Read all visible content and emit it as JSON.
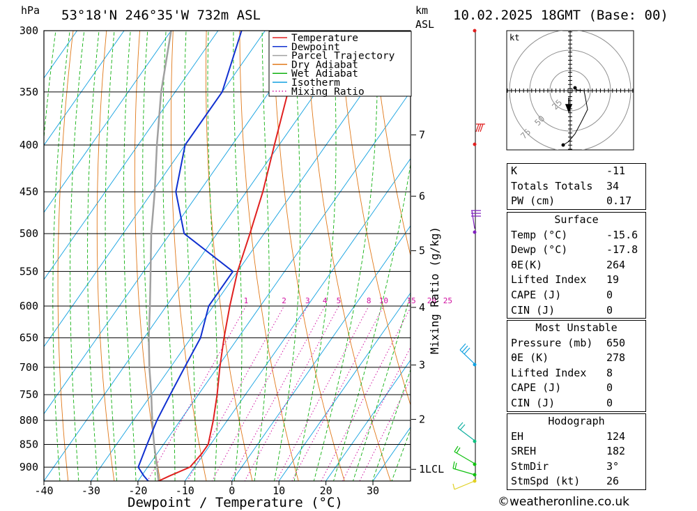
{
  "header": {
    "hpa_label": "hPa",
    "location": "53°18'N  246°35'W  732m  ASL",
    "km_label": "km",
    "asl_label": "ASL",
    "datetime": "10.02.2025  18GMT  (Base: 00)"
  },
  "chart_data": {
    "type": "line",
    "xlabel": "Dewpoint / Temperature (°C)",
    "ylabel_left": "hPa",
    "ylabel_right": "Mixing Ratio (g/kg)",
    "x_ticks": [
      -40,
      -30,
      -20,
      -10,
      0,
      10,
      20,
      30
    ],
    "pressure_levels": [
      300,
      350,
      400,
      450,
      500,
      550,
      600,
      650,
      700,
      750,
      800,
      850,
      900
    ],
    "xlim": [
      -40,
      38
    ],
    "plim": [
      300,
      932
    ],
    "km_ticks": [
      {
        "label": "7",
        "p": 390
      },
      {
        "label": "6",
        "p": 455
      },
      {
        "label": "5",
        "p": 522
      },
      {
        "label": "4",
        "p": 602
      },
      {
        "label": "3",
        "p": 696
      },
      {
        "label": "2",
        "p": 798
      },
      {
        "label": "1LCL",
        "p": 905
      }
    ],
    "mixing_ratio_labels": [
      "1",
      "2",
      "3",
      "4",
      "5",
      "8",
      "10",
      "15",
      "20",
      "25"
    ],
    "mixing_ratio_values": [
      1,
      2,
      3,
      4,
      5,
      8,
      10,
      15,
      20,
      25
    ],
    "legend": [
      {
        "name": "Temperature",
        "color": "#e02020"
      },
      {
        "name": "Dewpoint",
        "color": "#1030d0"
      },
      {
        "name": "Parcel Trajectory",
        "color": "#a0a0a0"
      },
      {
        "name": "Dry Adiabat",
        "color": "#e07818"
      },
      {
        "name": "Wet Adiabat",
        "color": "#10b010"
      },
      {
        "name": "Isotherm",
        "color": "#10a0e0"
      },
      {
        "name": "Mixing Ratio",
        "color": "#d010a0"
      }
    ],
    "series": [
      {
        "name": "Temperature",
        "color": "#e02020",
        "points": [
          [
            932,
            -15.6
          ],
          [
            920,
            -14
          ],
          [
            900,
            -11
          ],
          [
            870,
            -10.5
          ],
          [
            850,
            -10.5
          ],
          [
            800,
            -13
          ],
          [
            750,
            -16
          ],
          [
            700,
            -19.5
          ],
          [
            650,
            -23
          ],
          [
            600,
            -26.5
          ],
          [
            550,
            -30
          ],
          [
            500,
            -33
          ],
          [
            450,
            -36.5
          ],
          [
            400,
            -41
          ],
          [
            350,
            -46
          ],
          [
            300,
            -50
          ]
        ]
      },
      {
        "name": "Dewpoint",
        "color": "#1030d0",
        "points": [
          [
            932,
            -17.8
          ],
          [
            920,
            -19.5
          ],
          [
            900,
            -22
          ],
          [
            850,
            -23.5
          ],
          [
            800,
            -25
          ],
          [
            750,
            -26
          ],
          [
            700,
            -27
          ],
          [
            650,
            -28
          ],
          [
            600,
            -31
          ],
          [
            550,
            -31
          ],
          [
            500,
            -47
          ],
          [
            450,
            -55
          ],
          [
            400,
            -60
          ],
          [
            350,
            -60
          ],
          [
            300,
            -65
          ]
        ]
      },
      {
        "name": "Parcel Trajectory",
        "color": "#a0a0a0",
        "points": [
          [
            932,
            -15.6
          ],
          [
            900,
            -18
          ],
          [
            850,
            -22
          ],
          [
            800,
            -26
          ],
          [
            750,
            -30
          ],
          [
            700,
            -34.5
          ],
          [
            650,
            -39
          ],
          [
            600,
            -43.5
          ],
          [
            550,
            -48.5
          ],
          [
            500,
            -54
          ],
          [
            450,
            -59.5
          ],
          [
            400,
            -66
          ],
          [
            350,
            -73
          ],
          [
            300,
            -80
          ]
        ]
      }
    ]
  },
  "hodograph": {
    "unit": "kt",
    "ring_labels": [
      "25",
      "50",
      "75"
    ]
  },
  "indices": {
    "k_label": "K",
    "k_value": "-11",
    "tt_label": "Totals Totals",
    "tt_value": "34",
    "pw_label": "PW (cm)",
    "pw_value": "0.17"
  },
  "surface": {
    "title": "Surface",
    "temp_label": "Temp (°C)",
    "temp_value": "-15.6",
    "dewp_label": "Dewp (°C)",
    "dewp_value": "-17.8",
    "theta_label": "θE(K)",
    "theta_value": "264",
    "li_label": "Lifted Index",
    "li_value": "19",
    "cape_label": "CAPE (J)",
    "cape_value": "0",
    "cin_label": "CIN (J)",
    "cin_value": "0"
  },
  "most_unstable": {
    "title": "Most Unstable",
    "pressure_label": "Pressure (mb)",
    "pressure_value": "650",
    "theta_label": "θE (K)",
    "theta_value": "278",
    "li_label": "Lifted Index",
    "li_value": "8",
    "cape_label": "CAPE (J)",
    "cape_value": "0",
    "cin_label": "CIN (J)",
    "cin_value": "0"
  },
  "hodo_table": {
    "title": "Hodograph",
    "eh_label": "EH",
    "eh_value": "124",
    "sreh_label": "SREH",
    "sreh_value": "182",
    "stmdir_label": "StmDir",
    "stmdir_value": "3°",
    "stmspd_label": "StmSpd (kt)",
    "stmspd_value": "26"
  },
  "copyright": "©weatheronline.co.uk"
}
